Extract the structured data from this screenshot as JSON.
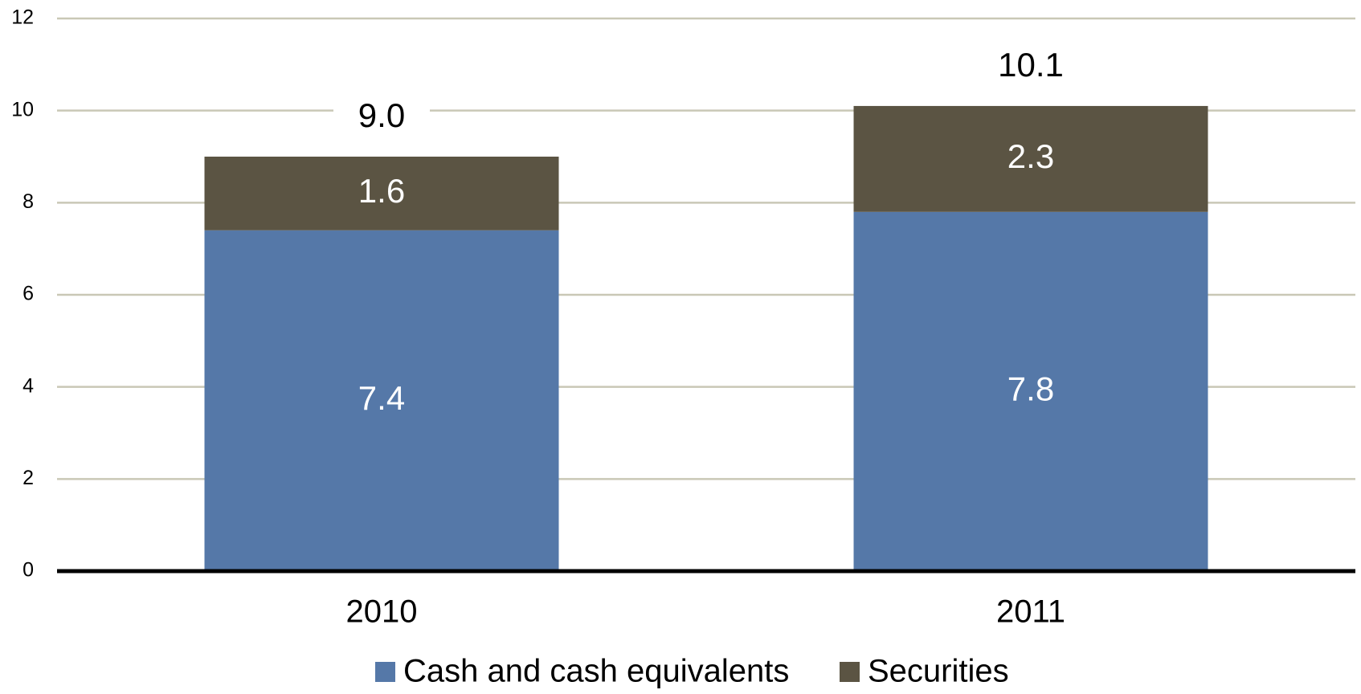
{
  "chart_data": {
    "type": "stacked_bar",
    "categories": [
      "2010",
      "2011"
    ],
    "series": [
      {
        "name": "Cash and cash equivalents",
        "color": "#5578a8",
        "values": [
          7.4,
          7.8
        ]
      },
      {
        "name": "Securities",
        "color": "#5b5443",
        "values": [
          1.6,
          2.3
        ]
      }
    ],
    "totals": [
      9.0,
      10.1
    ],
    "total_labels": [
      "9.0",
      "10.1"
    ],
    "ylim": [
      0,
      12
    ],
    "yticks": [
      0,
      2,
      4,
      6,
      8,
      10,
      12
    ],
    "grid": true,
    "legend": "bottom"
  }
}
